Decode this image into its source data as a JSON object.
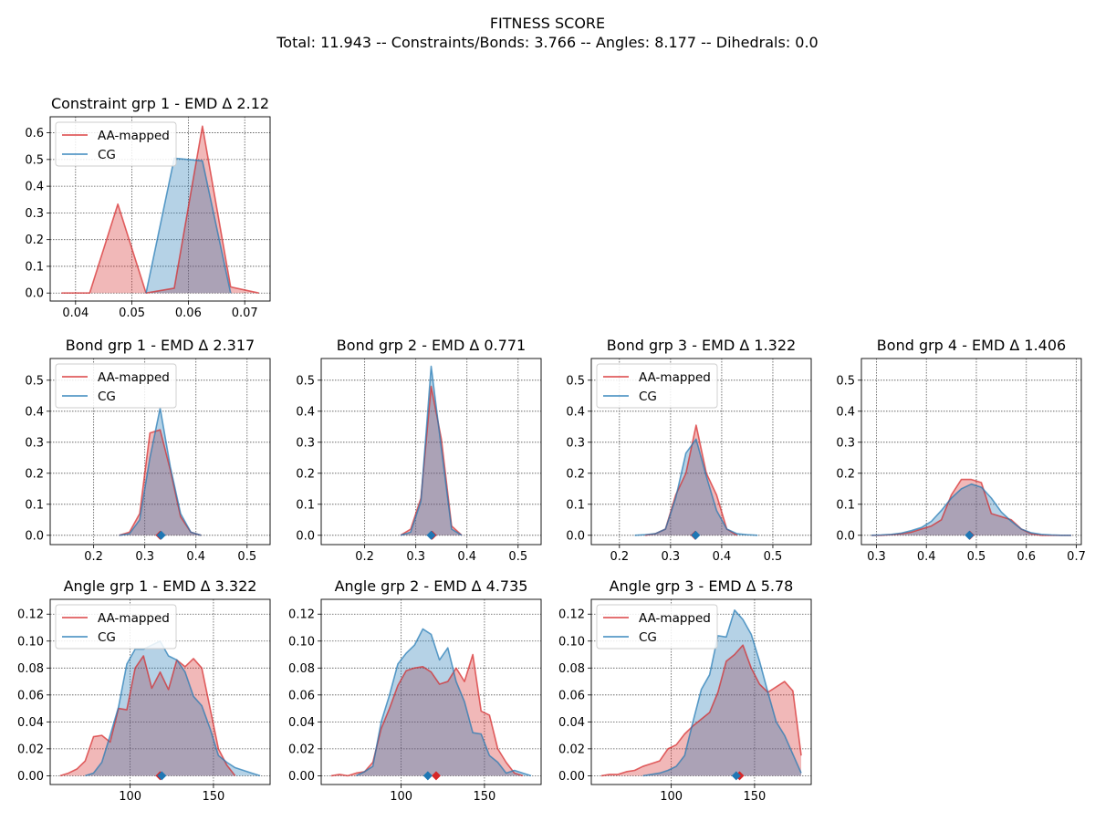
{
  "figure": {
    "title_line1": "FITNESS SCORE",
    "title_line2": "Total: 11.943 -- Constraints/Bonds: 3.766 -- Angles: 8.177 -- Dihedrals: 0.0"
  },
  "colors": {
    "aa": "#d62728",
    "cg": "#1f77b4",
    "overlap": "#8c6d8c"
  },
  "chart_data": [
    {
      "type": "area",
      "title": "Constraint grp 1 - EMD Δ 2.12",
      "xlim": [
        0.0355,
        0.0745
      ],
      "ylim": [
        -0.03,
        0.66
      ],
      "xticks": [
        0.03,
        0.04,
        0.05,
        0.06,
        0.07
      ],
      "yticks": [
        0.0,
        0.1,
        0.2,
        0.3,
        0.4,
        0.5,
        0.6
      ],
      "ytick_labels": [
        "0.0",
        "0.1",
        "0.2",
        "0.3",
        "0.4",
        "0.5",
        "0.6"
      ],
      "grid": true,
      "legend": [
        "AA-mapped",
        "CG"
      ],
      "legend_position": "upper-left",
      "series": [
        {
          "name": "AA-mapped",
          "x": [
            0.0375,
            0.0425,
            0.0475,
            0.0525,
            0.0575,
            0.0625,
            0.0675,
            0.0725
          ],
          "y": [
            0.0,
            0.0,
            0.333,
            0.0,
            0.018,
            0.625,
            0.023,
            0.0
          ]
        },
        {
          "name": "CG",
          "x": [
            0.0525,
            0.0575,
            0.0625,
            0.0675
          ],
          "y": [
            0.0,
            0.505,
            0.495,
            0.0
          ]
        }
      ]
    },
    {
      "type": "area",
      "title": "Bond grp 1 - EMD Δ 2.317",
      "xlim": [
        0.115,
        0.545
      ],
      "ylim": [
        -0.03,
        0.57
      ],
      "xticks": [
        0.2,
        0.3,
        0.4,
        0.5
      ],
      "yticks": [
        0.0,
        0.1,
        0.2,
        0.3,
        0.4,
        0.5
      ],
      "ytick_labels": [
        "0.0",
        "0.1",
        "0.2",
        "0.3",
        "0.4",
        "0.5"
      ],
      "grid": true,
      "legend": [
        "AA-mapped",
        "CG"
      ],
      "legend_position": "upper-left",
      "markers": [
        {
          "series": "AA-mapped",
          "x": 0.33
        },
        {
          "series": "CG",
          "x": 0.332
        }
      ],
      "series": [
        {
          "name": "AA-mapped",
          "x": [
            0.25,
            0.27,
            0.29,
            0.31,
            0.33,
            0.35,
            0.37,
            0.39,
            0.41
          ],
          "y": [
            0.0,
            0.01,
            0.07,
            0.33,
            0.34,
            0.21,
            0.06,
            0.01,
            0.0
          ]
        },
        {
          "name": "CG",
          "x": [
            0.25,
            0.27,
            0.29,
            0.31,
            0.33,
            0.35,
            0.37,
            0.39,
            0.41
          ],
          "y": [
            0.0,
            0.005,
            0.05,
            0.25,
            0.41,
            0.22,
            0.07,
            0.01,
            0.0
          ]
        }
      ]
    },
    {
      "type": "area",
      "title": "Bond grp 2 - EMD Δ 0.771",
      "xlim": [
        0.115,
        0.545
      ],
      "ylim": [
        -0.03,
        0.57
      ],
      "xticks": [
        0.2,
        0.3,
        0.4,
        0.5
      ],
      "yticks": [
        0.0,
        0.1,
        0.2,
        0.3,
        0.4,
        0.5
      ],
      "ytick_labels": [
        "0.0",
        "0.1",
        "0.2",
        "0.3",
        "0.4",
        "0.5"
      ],
      "grid": true,
      "legend": [],
      "markers": [
        {
          "series": "AA-mapped",
          "x": 0.332
        },
        {
          "series": "CG",
          "x": 0.33
        }
      ],
      "series": [
        {
          "name": "AA-mapped",
          "x": [
            0.27,
            0.29,
            0.31,
            0.33,
            0.35,
            0.37,
            0.39
          ],
          "y": [
            0.0,
            0.02,
            0.12,
            0.48,
            0.31,
            0.03,
            0.0
          ]
        },
        {
          "name": "CG",
          "x": [
            0.27,
            0.29,
            0.31,
            0.33,
            0.35,
            0.37,
            0.39
          ],
          "y": [
            0.0,
            0.01,
            0.11,
            0.545,
            0.28,
            0.02,
            0.0
          ]
        }
      ]
    },
    {
      "type": "area",
      "title": "Bond grp 3 - EMD Δ 1.322",
      "xlim": [
        0.145,
        0.575
      ],
      "ylim": [
        -0.03,
        0.57
      ],
      "xticks": [
        0.2,
        0.3,
        0.4,
        0.5
      ],
      "yticks": [
        0.0,
        0.1,
        0.2,
        0.3,
        0.4,
        0.5
      ],
      "ytick_labels": [
        "0.0",
        "0.1",
        "0.2",
        "0.3",
        "0.4",
        "0.5"
      ],
      "grid": true,
      "legend": [
        "AA-mapped",
        "CG"
      ],
      "legend_position": "upper-left",
      "markers": [
        {
          "series": "AA-mapped",
          "x": 0.348
        },
        {
          "series": "CG",
          "x": 0.349
        }
      ],
      "series": [
        {
          "name": "AA-mapped",
          "x": [
            0.25,
            0.27,
            0.29,
            0.31,
            0.33,
            0.35,
            0.37,
            0.39,
            0.41,
            0.43
          ],
          "y": [
            0.0,
            0.005,
            0.02,
            0.13,
            0.2,
            0.355,
            0.2,
            0.13,
            0.02,
            0.0
          ]
        },
        {
          "name": "CG",
          "x": [
            0.23,
            0.25,
            0.27,
            0.29,
            0.31,
            0.33,
            0.35,
            0.37,
            0.39,
            0.41,
            0.43,
            0.45,
            0.47
          ],
          "y": [
            0.0,
            0.002,
            0.005,
            0.02,
            0.12,
            0.265,
            0.31,
            0.19,
            0.08,
            0.02,
            0.005,
            0.002,
            0.0
          ]
        }
      ]
    },
    {
      "type": "area",
      "title": "Bond grp 4 - EMD Δ 1.406",
      "xlim": [
        0.27,
        0.71
      ],
      "ylim": [
        -0.03,
        0.57
      ],
      "xticks": [
        0.3,
        0.4,
        0.5,
        0.6,
        0.7
      ],
      "yticks": [
        0.0,
        0.1,
        0.2,
        0.3,
        0.4,
        0.5
      ],
      "ytick_labels": [
        "0.0",
        "0.1",
        "0.2",
        "0.3",
        "0.4",
        "0.5"
      ],
      "grid": true,
      "legend": [],
      "markers": [
        {
          "series": "AA-mapped",
          "x": 0.487
        },
        {
          "series": "CG",
          "x": 0.486
        }
      ],
      "series": [
        {
          "name": "AA-mapped",
          "x": [
            0.29,
            0.31,
            0.33,
            0.35,
            0.37,
            0.39,
            0.41,
            0.43,
            0.45,
            0.47,
            0.49,
            0.51,
            0.53,
            0.55,
            0.57,
            0.59,
            0.61,
            0.63,
            0.65,
            0.67,
            0.69
          ],
          "y": [
            0.0,
            0.0,
            0.002,
            0.005,
            0.01,
            0.02,
            0.03,
            0.05,
            0.13,
            0.18,
            0.18,
            0.17,
            0.07,
            0.06,
            0.05,
            0.02,
            0.005,
            0.0,
            0.0,
            0.0,
            0.0
          ]
        },
        {
          "name": "CG",
          "x": [
            0.29,
            0.31,
            0.33,
            0.35,
            0.37,
            0.39,
            0.41,
            0.43,
            0.45,
            0.47,
            0.49,
            0.51,
            0.53,
            0.55,
            0.57,
            0.59,
            0.61,
            0.63,
            0.65,
            0.67,
            0.69
          ],
          "y": [
            0.0,
            0.001,
            0.003,
            0.007,
            0.015,
            0.025,
            0.045,
            0.08,
            0.12,
            0.15,
            0.165,
            0.155,
            0.12,
            0.075,
            0.045,
            0.02,
            0.008,
            0.003,
            0.001,
            0.0,
            0.0
          ]
        }
      ]
    },
    {
      "type": "area",
      "title": "Angle grp 1 - EMD Δ 3.322",
      "xlim": [
        52,
        184
      ],
      "ylim": [
        -0.0065,
        0.131
      ],
      "xticks": [
        100,
        150
      ],
      "yticks": [
        0.0,
        0.02,
        0.04,
        0.06,
        0.08,
        0.1,
        0.12
      ],
      "ytick_labels": [
        "0.00",
        "0.02",
        "0.04",
        "0.06",
        "0.08",
        "0.10",
        "0.12"
      ],
      "grid": true,
      "legend": [
        "AA-mapped",
        "CG"
      ],
      "legend_position": "upper-left",
      "markers": [
        {
          "series": "AA-mapped",
          "x": 118
        },
        {
          "series": "CG",
          "x": 119
        }
      ],
      "series": [
        {
          "name": "AA-mapped",
          "x": [
            58,
            63,
            68,
            73,
            78,
            83,
            88,
            93,
            98,
            103,
            108,
            113,
            118,
            123,
            128,
            133,
            138,
            143,
            148,
            153,
            158,
            163
          ],
          "y": [
            0.0,
            0.002,
            0.005,
            0.011,
            0.029,
            0.03,
            0.025,
            0.05,
            0.049,
            0.08,
            0.089,
            0.065,
            0.077,
            0.064,
            0.086,
            0.081,
            0.087,
            0.08,
            0.05,
            0.02,
            0.008,
            0.0
          ]
        },
        {
          "name": "CG",
          "x": [
            73,
            78,
            83,
            88,
            93,
            98,
            103,
            108,
            113,
            118,
            123,
            128,
            133,
            138,
            143,
            148,
            153,
            158,
            163,
            168,
            173,
            178
          ],
          "y": [
            0.0,
            0.002,
            0.01,
            0.03,
            0.051,
            0.083,
            0.094,
            0.094,
            0.097,
            0.1,
            0.089,
            0.086,
            0.077,
            0.059,
            0.052,
            0.035,
            0.015,
            0.01,
            0.006,
            0.004,
            0.002,
            0.0
          ]
        }
      ]
    },
    {
      "type": "area",
      "title": "Angle grp 2 - EMD Δ 4.735",
      "xlim": [
        52,
        184
      ],
      "ylim": [
        -0.0065,
        0.131
      ],
      "xticks": [
        100,
        150
      ],
      "yticks": [
        0.0,
        0.02,
        0.04,
        0.06,
        0.08,
        0.1,
        0.12
      ],
      "ytick_labels": [
        "0.00",
        "0.02",
        "0.04",
        "0.06",
        "0.08",
        "0.10",
        "0.12"
      ],
      "grid": true,
      "legend": [],
      "markers": [
        {
          "series": "AA-mapped",
          "x": 121
        },
        {
          "series": "CG",
          "x": 116
        }
      ],
      "series": [
        {
          "name": "AA-mapped",
          "x": [
            58,
            63,
            68,
            73,
            78,
            83,
            88,
            93,
            98,
            103,
            108,
            113,
            118,
            123,
            128,
            133,
            138,
            143,
            148,
            153,
            158,
            163,
            168,
            173
          ],
          "y": [
            0.0,
            0.001,
            0.0,
            0.002,
            0.003,
            0.01,
            0.035,
            0.05,
            0.067,
            0.078,
            0.08,
            0.081,
            0.077,
            0.068,
            0.07,
            0.08,
            0.07,
            0.09,
            0.048,
            0.045,
            0.02,
            0.01,
            0.002,
            0.0
          ]
        },
        {
          "name": "CG",
          "x": [
            73,
            78,
            83,
            88,
            93,
            98,
            103,
            108,
            113,
            118,
            123,
            128,
            133,
            138,
            143,
            148,
            153,
            158,
            163,
            168,
            173,
            178
          ],
          "y": [
            0.0,
            0.003,
            0.007,
            0.04,
            0.06,
            0.083,
            0.091,
            0.097,
            0.109,
            0.105,
            0.086,
            0.095,
            0.07,
            0.055,
            0.032,
            0.031,
            0.015,
            0.01,
            0.002,
            0.004,
            0.002,
            0.0
          ]
        }
      ]
    },
    {
      "type": "area",
      "title": "Angle grp 3 - EMD Δ 5.78",
      "xlim": [
        52,
        184
      ],
      "ylim": [
        -0.0065,
        0.131
      ],
      "xticks": [
        100,
        150
      ],
      "yticks": [
        0.0,
        0.02,
        0.04,
        0.06,
        0.08,
        0.1,
        0.12
      ],
      "ytick_labels": [
        "0.00",
        "0.02",
        "0.04",
        "0.06",
        "0.08",
        "0.10",
        "0.12"
      ],
      "grid": true,
      "legend": [
        "AA-mapped",
        "CG"
      ],
      "legend_position": "upper-left",
      "markers": [
        {
          "series": "AA-mapped",
          "x": 141
        },
        {
          "series": "CG",
          "x": 139
        }
      ],
      "series": [
        {
          "name": "AA-mapped",
          "x": [
            58,
            63,
            68,
            73,
            78,
            83,
            88,
            93,
            98,
            103,
            108,
            113,
            118,
            123,
            128,
            133,
            138,
            143,
            148,
            153,
            158,
            163,
            168,
            173,
            178
          ],
          "y": [
            0.0,
            0.001,
            0.001,
            0.003,
            0.004,
            0.007,
            0.009,
            0.011,
            0.02,
            0.023,
            0.031,
            0.037,
            0.042,
            0.047,
            0.062,
            0.085,
            0.09,
            0.097,
            0.08,
            0.068,
            0.062,
            0.066,
            0.07,
            0.063,
            0.015
          ]
        },
        {
          "name": "CG",
          "x": [
            83,
            88,
            93,
            98,
            103,
            108,
            113,
            118,
            123,
            128,
            133,
            138,
            143,
            148,
            153,
            158,
            163,
            168,
            173,
            178
          ],
          "y": [
            0.0,
            0.001,
            0.002,
            0.004,
            0.007,
            0.015,
            0.04,
            0.064,
            0.075,
            0.104,
            0.103,
            0.123,
            0.116,
            0.105,
            0.085,
            0.062,
            0.04,
            0.03,
            0.016,
            0.002
          ]
        }
      ]
    }
  ]
}
